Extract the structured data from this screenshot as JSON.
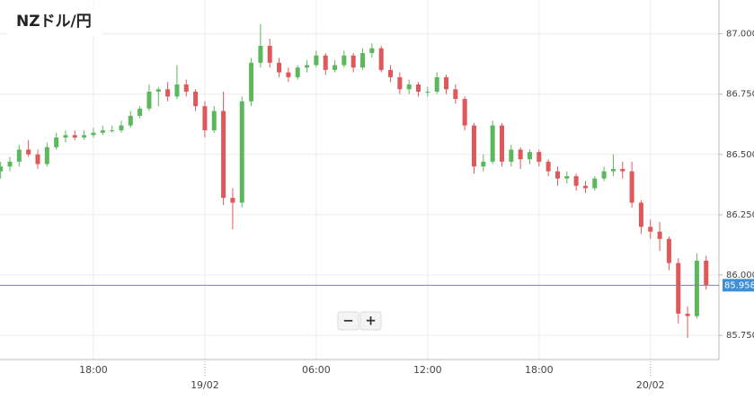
{
  "chart_data": {
    "type": "candlestick",
    "title": "NZドル/円",
    "categories": [
      null,
      null,
      null,
      null,
      null,
      null,
      null,
      null,
      null,
      null,
      "18:00",
      null,
      null,
      null,
      null,
      null,
      null,
      null,
      null,
      null,
      null,
      null,
      "19/02",
      null,
      null,
      null,
      null,
      null,
      null,
      null,
      null,
      null,
      null,
      null,
      "06:00",
      null,
      null,
      null,
      null,
      null,
      null,
      null,
      null,
      null,
      null,
      null,
      "12:00",
      null,
      null,
      null,
      null,
      null,
      null,
      null,
      null,
      null,
      null,
      null,
      "18:00",
      null,
      null,
      null,
      null,
      null,
      null,
      null,
      null,
      null,
      null,
      null,
      "20/02",
      null,
      null,
      null,
      null,
      null,
      null
    ],
    "candles": [
      [
        86.43,
        86.47,
        86.4,
        86.45
      ],
      [
        86.45,
        86.49,
        86.43,
        86.47
      ],
      [
        86.47,
        86.54,
        86.45,
        86.52
      ],
      [
        86.52,
        86.56,
        86.49,
        86.5
      ],
      [
        86.5,
        86.52,
        86.44,
        86.46
      ],
      [
        86.46,
        86.55,
        86.45,
        86.53
      ],
      [
        86.53,
        86.59,
        86.52,
        86.57
      ],
      [
        86.57,
        86.6,
        86.55,
        86.58
      ],
      [
        86.58,
        86.6,
        86.56,
        86.57
      ],
      [
        86.57,
        86.6,
        86.56,
        86.58
      ],
      [
        86.58,
        86.61,
        86.57,
        86.59
      ],
      [
        86.59,
        86.62,
        86.58,
        86.6
      ],
      [
        86.6,
        86.62,
        86.59,
        86.6
      ],
      [
        86.6,
        86.64,
        86.59,
        86.62
      ],
      [
        86.62,
        86.68,
        86.61,
        86.66
      ],
      [
        86.66,
        86.7,
        86.65,
        86.69
      ],
      [
        86.69,
        86.79,
        86.68,
        86.76
      ],
      [
        86.76,
        86.78,
        86.7,
        86.77
      ],
      [
        86.77,
        86.8,
        86.72,
        86.74
      ],
      [
        86.74,
        86.87,
        86.73,
        86.79
      ],
      [
        86.79,
        86.81,
        86.74,
        86.76
      ],
      [
        86.76,
        86.77,
        86.68,
        86.7
      ],
      [
        86.7,
        86.72,
        86.57,
        86.6
      ],
      [
        86.6,
        86.7,
        86.59,
        86.68
      ],
      [
        86.68,
        86.76,
        86.29,
        86.32
      ],
      [
        86.32,
        86.36,
        86.19,
        86.3
      ],
      [
        86.3,
        86.74,
        86.28,
        86.72
      ],
      [
        86.72,
        86.9,
        86.7,
        86.88
      ],
      [
        86.88,
        87.04,
        86.86,
        86.95
      ],
      [
        86.95,
        86.98,
        86.86,
        86.88
      ],
      [
        86.88,
        86.9,
        86.82,
        86.84
      ],
      [
        86.84,
        86.86,
        86.8,
        86.82
      ],
      [
        86.82,
        86.87,
        86.81,
        86.86
      ],
      [
        86.86,
        86.89,
        86.84,
        86.87
      ],
      [
        86.87,
        86.93,
        86.86,
        86.91
      ],
      [
        86.91,
        86.92,
        86.83,
        86.85
      ],
      [
        86.85,
        86.89,
        86.84,
        86.87
      ],
      [
        86.87,
        86.93,
        86.86,
        86.91
      ],
      [
        86.91,
        86.92,
        86.84,
        86.86
      ],
      [
        86.86,
        86.94,
        86.85,
        86.92
      ],
      [
        86.92,
        86.96,
        86.9,
        86.94
      ],
      [
        86.94,
        86.95,
        86.84,
        86.85
      ],
      [
        86.85,
        86.87,
        86.8,
        86.82
      ],
      [
        86.82,
        86.84,
        86.75,
        86.77
      ],
      [
        86.77,
        86.81,
        86.75,
        86.79
      ],
      [
        86.79,
        86.8,
        86.74,
        86.76
      ],
      [
        86.76,
        86.78,
        86.74,
        86.76
      ],
      [
        86.76,
        86.84,
        86.75,
        86.82
      ],
      [
        86.82,
        86.83,
        86.75,
        86.77
      ],
      [
        86.77,
        86.79,
        86.71,
        86.73
      ],
      [
        86.73,
        86.74,
        86.6,
        86.62
      ],
      [
        86.62,
        86.63,
        86.42,
        86.45
      ],
      [
        86.45,
        86.5,
        86.43,
        86.47
      ],
      [
        86.47,
        86.64,
        86.46,
        86.62
      ],
      [
        86.62,
        86.63,
        86.45,
        86.47
      ],
      [
        86.47,
        86.54,
        86.45,
        86.52
      ],
      [
        86.52,
        86.53,
        86.44,
        86.48
      ],
      [
        86.48,
        86.52,
        86.46,
        86.51
      ],
      [
        86.51,
        86.52,
        86.45,
        86.47
      ],
      [
        86.47,
        86.48,
        86.41,
        86.43
      ],
      [
        86.43,
        86.45,
        86.37,
        86.4
      ],
      [
        86.4,
        86.43,
        86.38,
        86.41
      ],
      [
        86.41,
        86.42,
        86.35,
        86.37
      ],
      [
        86.37,
        86.39,
        86.34,
        86.36
      ],
      [
        86.36,
        86.41,
        86.35,
        86.4
      ],
      [
        86.4,
        86.45,
        86.39,
        86.43
      ],
      [
        86.43,
        86.5,
        86.41,
        86.44
      ],
      [
        86.44,
        86.47,
        86.4,
        86.43
      ],
      [
        86.43,
        86.47,
        86.28,
        86.3
      ],
      [
        86.3,
        86.31,
        86.17,
        86.2
      ],
      [
        86.2,
        86.23,
        86.15,
        86.18
      ],
      [
        86.18,
        86.22,
        86.1,
        86.15
      ],
      [
        86.15,
        86.16,
        86.02,
        86.05
      ],
      [
        86.05,
        86.07,
        85.8,
        85.84
      ],
      [
        85.84,
        85.87,
        85.74,
        85.83
      ],
      [
        85.83,
        86.09,
        85.82,
        86.06
      ],
      [
        86.06,
        86.08,
        85.94,
        85.958
      ]
    ],
    "up_color": "#5cb85c",
    "down_color": "#e0595a",
    "ylim": [
      85.65,
      87.14
    ],
    "yticks": [
      {
        "value": 85.75,
        "label": "85.750"
      },
      {
        "value": 86.0,
        "label": "86.000"
      },
      {
        "value": 86.25,
        "label": "86.250"
      },
      {
        "value": 86.5,
        "label": "86.500"
      },
      {
        "value": 86.75,
        "label": "86.750"
      },
      {
        "value": 87.0,
        "label": "87.000"
      }
    ],
    "grid": true,
    "current_price": 85.958,
    "current_price_color": "#3aa6a0",
    "current_label_color": "#3d8fd6",
    "controls": [
      "−",
      "+"
    ]
  }
}
